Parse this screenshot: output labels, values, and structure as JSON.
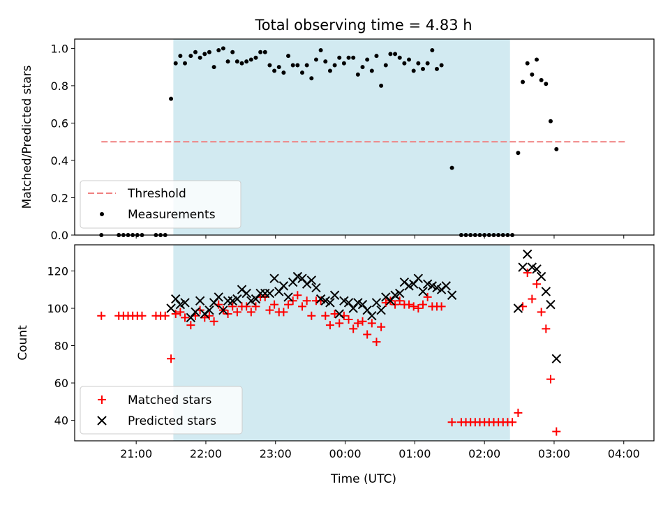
{
  "title": "Total observing time = 4.83 h",
  "xlabel": "Time (UTC)",
  "x_ticks": [
    "21:00",
    "22:00",
    "23:00",
    "00:00",
    "01:00",
    "02:00",
    "03:00",
    "04:00"
  ],
  "colors": {
    "shade": "#add8e6",
    "threshold": "#f08080",
    "matched": "#ff0000",
    "predicted": "#000000",
    "measurement": "#000000"
  },
  "chart_data": [
    {
      "type": "scatter",
      "ylabel": "Matched/Predicted stars",
      "ylim": [
        0,
        1.05
      ],
      "y_ticks": [
        "0.0",
        "0.2",
        "0.4",
        "0.6",
        "0.8",
        "1.0"
      ],
      "grid": false,
      "legend_position": "lower-left",
      "legend": [
        "Threshold",
        "Measurements"
      ],
      "shaded_interval": {
        "x": [
          "21:32",
          "02:22"
        ]
      },
      "threshold": {
        "name": "Threshold",
        "value": 0.5,
        "x": [
          "20:30",
          "04:03"
        ],
        "style": "dashed"
      },
      "series": [
        {
          "name": "Measurements",
          "points": [
            [
              "20:30",
              0.0
            ],
            [
              "20:45",
              0.0
            ],
            [
              "20:49",
              0.0
            ],
            [
              "20:53",
              0.0
            ],
            [
              "20:57",
              0.0
            ],
            [
              "21:01",
              0.0
            ],
            [
              "21:05",
              0.0
            ],
            [
              "21:17",
              0.0
            ],
            [
              "21:21",
              0.0
            ],
            [
              "21:25",
              0.0
            ],
            [
              "21:30",
              0.73
            ],
            [
              "21:34",
              0.92
            ],
            [
              "21:38",
              0.96
            ],
            [
              "21:42",
              0.92
            ],
            [
              "21:47",
              0.96
            ],
            [
              "21:51",
              0.98
            ],
            [
              "21:55",
              0.95
            ],
            [
              "21:59",
              0.97
            ],
            [
              "22:03",
              0.98
            ],
            [
              "22:07",
              0.9
            ],
            [
              "22:11",
              0.99
            ],
            [
              "22:15",
              1.0
            ],
            [
              "22:19",
              0.93
            ],
            [
              "22:23",
              0.98
            ],
            [
              "22:27",
              0.93
            ],
            [
              "22:31",
              0.92
            ],
            [
              "22:35",
              0.93
            ],
            [
              "22:39",
              0.94
            ],
            [
              "22:43",
              0.95
            ],
            [
              "22:47",
              0.98
            ],
            [
              "22:51",
              0.98
            ],
            [
              "22:55",
              0.91
            ],
            [
              "22:59",
              0.88
            ],
            [
              "23:03",
              0.9
            ],
            [
              "23:07",
              0.87
            ],
            [
              "23:11",
              0.96
            ],
            [
              "23:15",
              0.91
            ],
            [
              "23:19",
              0.91
            ],
            [
              "23:23",
              0.87
            ],
            [
              "23:27",
              0.91
            ],
            [
              "23:31",
              0.84
            ],
            [
              "23:35",
              0.94
            ],
            [
              "23:39",
              0.99
            ],
            [
              "23:43",
              0.93
            ],
            [
              "23:47",
              0.88
            ],
            [
              "23:51",
              0.91
            ],
            [
              "23:55",
              0.95
            ],
            [
              "23:59",
              0.92
            ],
            [
              "00:03",
              0.95
            ],
            [
              "00:07",
              0.95
            ],
            [
              "00:11",
              0.86
            ],
            [
              "00:15",
              0.9
            ],
            [
              "00:19",
              0.94
            ],
            [
              "00:23",
              0.88
            ],
            [
              "00:27",
              0.96
            ],
            [
              "00:31",
              0.8
            ],
            [
              "00:35",
              0.91
            ],
            [
              "00:39",
              0.97
            ],
            [
              "00:43",
              0.97
            ],
            [
              "00:47",
              0.95
            ],
            [
              "00:51",
              0.92
            ],
            [
              "00:55",
              0.94
            ],
            [
              "00:59",
              0.88
            ],
            [
              "01:03",
              0.92
            ],
            [
              "01:07",
              0.89
            ],
            [
              "01:11",
              0.92
            ],
            [
              "01:15",
              0.99
            ],
            [
              "01:19",
              0.89
            ],
            [
              "01:23",
              0.91
            ],
            [
              "01:32",
              0.36
            ],
            [
              "01:40",
              0.0
            ],
            [
              "01:44",
              0.0
            ],
            [
              "01:48",
              0.0
            ],
            [
              "01:52",
              0.0
            ],
            [
              "01:56",
              0.0
            ],
            [
              "02:00",
              0.0
            ],
            [
              "02:04",
              0.0
            ],
            [
              "02:08",
              0.0
            ],
            [
              "02:12",
              0.0
            ],
            [
              "02:16",
              0.0
            ],
            [
              "02:20",
              0.0
            ],
            [
              "02:24",
              0.0
            ],
            [
              "02:29",
              0.44
            ],
            [
              "02:33",
              0.82
            ],
            [
              "02:37",
              0.92
            ],
            [
              "02:41",
              0.86
            ],
            [
              "02:45",
              0.94
            ],
            [
              "02:49",
              0.83
            ],
            [
              "02:53",
              0.81
            ],
            [
              "02:57",
              0.61
            ],
            [
              "03:02",
              0.46
            ]
          ]
        }
      ]
    },
    {
      "type": "scatter",
      "ylabel": "Count",
      "ylim": [
        29,
        134
      ],
      "y_ticks": [
        "40",
        "60",
        "80",
        "100",
        "120"
      ],
      "grid": false,
      "legend_position": "lower-left",
      "legend": [
        "Matched stars",
        "Predicted stars"
      ],
      "shaded_interval": {
        "x": [
          "21:32",
          "02:22"
        ]
      },
      "series": [
        {
          "name": "Matched stars",
          "marker": "+",
          "points": [
            [
              "20:30",
              96
            ],
            [
              "20:45",
              96
            ],
            [
              "20:49",
              96
            ],
            [
              "20:53",
              96
            ],
            [
              "20:57",
              96
            ],
            [
              "21:01",
              96
            ],
            [
              "21:05",
              96
            ],
            [
              "21:17",
              96
            ],
            [
              "21:21",
              96
            ],
            [
              "21:25",
              96
            ],
            [
              "21:30",
              73
            ],
            [
              "21:34",
              97
            ],
            [
              "21:38",
              98
            ],
            [
              "21:42",
              95
            ],
            [
              "21:47",
              91
            ],
            [
              "21:51",
              96
            ],
            [
              "21:55",
              99
            ],
            [
              "21:59",
              95
            ],
            [
              "22:03",
              96
            ],
            [
              "22:07",
              93
            ],
            [
              "22:11",
              102
            ],
            [
              "22:15",
              99
            ],
            [
              "22:19",
              97
            ],
            [
              "22:23",
              101
            ],
            [
              "22:27",
              98
            ],
            [
              "22:31",
              101
            ],
            [
              "22:35",
              101
            ],
            [
              "22:39",
              98
            ],
            [
              "22:43",
              101
            ],
            [
              "22:47",
              106
            ],
            [
              "22:51",
              106
            ],
            [
              "22:55",
              99
            ],
            [
              "22:59",
              102
            ],
            [
              "23:03",
              98
            ],
            [
              "23:07",
              98
            ],
            [
              "23:11",
              102
            ],
            [
              "23:15",
              104
            ],
            [
              "23:19",
              107
            ],
            [
              "23:23",
              101
            ],
            [
              "23:27",
              104
            ],
            [
              "23:31",
              96
            ],
            [
              "23:35",
              104
            ],
            [
              "23:39",
              104
            ],
            [
              "23:43",
              96
            ],
            [
              "23:47",
              91
            ],
            [
              "23:51",
              97
            ],
            [
              "23:55",
              92
            ],
            [
              "23:59",
              96
            ],
            [
              "00:03",
              94
            ],
            [
              "00:07",
              89
            ],
            [
              "00:11",
              92
            ],
            [
              "00:15",
              93
            ],
            [
              "00:19",
              86
            ],
            [
              "00:23",
              92
            ],
            [
              "00:27",
              82
            ],
            [
              "00:31",
              90
            ],
            [
              "00:35",
              103
            ],
            [
              "00:39",
              104
            ],
            [
              "00:43",
              102
            ],
            [
              "00:47",
              104
            ],
            [
              "00:51",
              102
            ],
            [
              "00:55",
              102
            ],
            [
              "00:59",
              101
            ],
            [
              "01:03",
              100
            ],
            [
              "01:07",
              102
            ],
            [
              "01:11",
              106
            ],
            [
              "01:15",
              101
            ],
            [
              "01:19",
              101
            ],
            [
              "01:23",
              101
            ],
            [
              "01:32",
              39
            ],
            [
              "01:40",
              39
            ],
            [
              "01:44",
              39
            ],
            [
              "01:48",
              39
            ],
            [
              "01:52",
              39
            ],
            [
              "01:56",
              39
            ],
            [
              "02:00",
              39
            ],
            [
              "02:04",
              39
            ],
            [
              "02:08",
              39
            ],
            [
              "02:12",
              39
            ],
            [
              "02:16",
              39
            ],
            [
              "02:20",
              39
            ],
            [
              "02:24",
              39
            ],
            [
              "02:29",
              44
            ],
            [
              "02:33",
              101
            ],
            [
              "02:37",
              119
            ],
            [
              "02:41",
              105
            ],
            [
              "02:45",
              113
            ],
            [
              "02:49",
              98
            ],
            [
              "02:53",
              89
            ],
            [
              "02:57",
              62
            ],
            [
              "03:02",
              34
            ]
          ]
        },
        {
          "name": "Predicted stars",
          "marker": "x",
          "points": [
            [
              "21:30",
              100
            ],
            [
              "21:34",
              105
            ],
            [
              "21:38",
              102
            ],
            [
              "21:42",
              103
            ],
            [
              "21:47",
              95
            ],
            [
              "21:51",
              98
            ],
            [
              "21:55",
              104
            ],
            [
              "21:59",
              97
            ],
            [
              "22:03",
              99
            ],
            [
              "22:07",
              103
            ],
            [
              "22:11",
              106
            ],
            [
              "22:15",
              99
            ],
            [
              "22:19",
              104
            ],
            [
              "22:23",
              104
            ],
            [
              "22:27",
              105
            ],
            [
              "22:31",
              110
            ],
            [
              "22:35",
              108
            ],
            [
              "22:39",
              104
            ],
            [
              "22:43",
              105
            ],
            [
              "22:47",
              108
            ],
            [
              "22:51",
              108
            ],
            [
              "22:55",
              108
            ],
            [
              "22:59",
              116
            ],
            [
              "23:03",
              109
            ],
            [
              "23:07",
              112
            ],
            [
              "23:11",
              106
            ],
            [
              "23:15",
              114
            ],
            [
              "23:19",
              117
            ],
            [
              "23:23",
              116
            ],
            [
              "23:27",
              113
            ],
            [
              "23:31",
              115
            ],
            [
              "23:35",
              111
            ],
            [
              "23:39",
              105
            ],
            [
              "23:43",
              104
            ],
            [
              "23:47",
              103
            ],
            [
              "23:51",
              107
            ],
            [
              "23:55",
              97
            ],
            [
              "23:59",
              104
            ],
            [
              "00:03",
              103
            ],
            [
              "00:07",
              100
            ],
            [
              "00:11",
              103
            ],
            [
              "00:15",
              102
            ],
            [
              "00:19",
              99
            ],
            [
              "00:23",
              96
            ],
            [
              "00:27",
              103
            ],
            [
              "00:31",
              99
            ],
            [
              "00:35",
              106
            ],
            [
              "00:39",
              104
            ],
            [
              "00:43",
              107
            ],
            [
              "00:47",
              108
            ],
            [
              "00:51",
              114
            ],
            [
              "00:55",
              112
            ],
            [
              "00:59",
              113
            ],
            [
              "01:03",
              116
            ],
            [
              "01:07",
              109
            ],
            [
              "01:11",
              113
            ],
            [
              "01:15",
              112
            ],
            [
              "01:19",
              111
            ],
            [
              "01:23",
              110
            ],
            [
              "01:27",
              112
            ],
            [
              "01:32",
              107
            ],
            [
              "02:29",
              100
            ],
            [
              "02:33",
              122
            ],
            [
              "02:37",
              129
            ],
            [
              "02:41",
              122
            ],
            [
              "02:45",
              121
            ],
            [
              "02:49",
              117
            ],
            [
              "02:53",
              109
            ],
            [
              "02:57",
              102
            ],
            [
              "03:02",
              73
            ]
          ]
        }
      ]
    }
  ]
}
